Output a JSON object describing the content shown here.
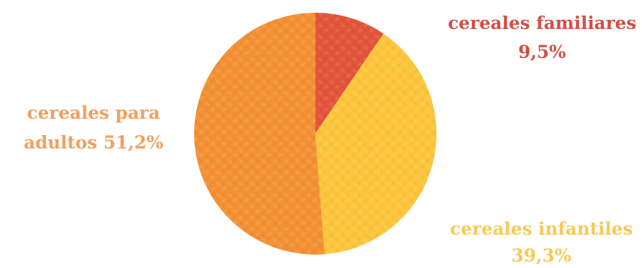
{
  "chart_data": {
    "type": "pie",
    "slices": [
      {
        "label": "cereales familiares",
        "value_text": "9,5%",
        "value": 9.5,
        "color": "#e2553a"
      },
      {
        "label": "cereales infantiles",
        "value_text": "39,3%",
        "value": 39.3,
        "color": "#fdc53c"
      },
      {
        "label": "cereales para adultos",
        "value_text": "51,2%",
        "value": 51.2,
        "color": "#f49034"
      }
    ],
    "label_colors": {
      "familiares": "#d15043",
      "infantiles": "#f7c956",
      "adultos": "#f1a15e"
    },
    "labels": {
      "familiares_line1": "cereales familiares",
      "familiares_line2": "9,5%",
      "infantiles_line1": "cereales infantiles",
      "infantiles_line2": "39,3%",
      "adultos_line1": "cereales para",
      "adultos_line2": "adultos 51,2%"
    }
  }
}
